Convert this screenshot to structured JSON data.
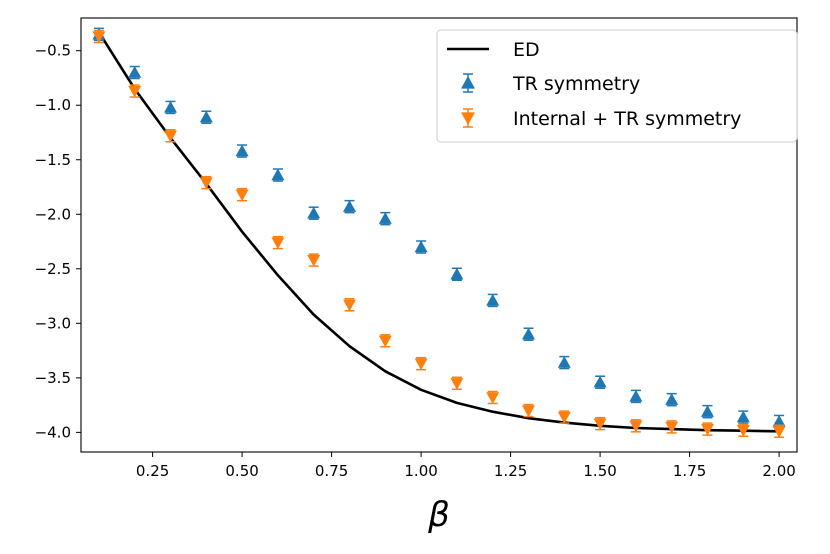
{
  "chart_data": {
    "type": "line+scatter",
    "title": "",
    "xlabel": "β",
    "ylabel": "",
    "xlim": [
      0.05,
      2.05
    ],
    "ylim": [
      -4.18,
      -0.2
    ],
    "xticks": [
      0.25,
      0.5,
      0.75,
      1.0,
      1.25,
      1.5,
      1.75,
      2.0
    ],
    "xtick_labels": [
      "0.25",
      "0.50",
      "0.75",
      "1.00",
      "1.25",
      "1.50",
      "1.75",
      "2.00"
    ],
    "yticks": [
      -0.5,
      -1.0,
      -1.5,
      -2.0,
      -2.5,
      -3.0,
      -3.5,
      -4.0
    ],
    "ytick_labels": [
      "−0.5",
      "−1.0",
      "−1.5",
      "−2.0",
      "−2.5",
      "−3.0",
      "−3.5",
      "−4.0"
    ],
    "legend_position": "top-right",
    "series": [
      {
        "name": "ED",
        "kind": "line",
        "color": "#000000",
        "x": [
          0.1,
          0.2,
          0.3,
          0.4,
          0.5,
          0.6,
          0.7,
          0.8,
          0.9,
          1.0,
          1.1,
          1.2,
          1.3,
          1.4,
          1.5,
          1.6,
          1.7,
          1.8,
          1.9,
          2.0
        ],
        "y": [
          -0.33,
          -0.85,
          -1.3,
          -1.72,
          -2.16,
          -2.56,
          -2.92,
          -3.21,
          -3.44,
          -3.61,
          -3.73,
          -3.81,
          -3.87,
          -3.91,
          -3.94,
          -3.96,
          -3.97,
          -3.98,
          -3.985,
          -3.99
        ]
      },
      {
        "name": "TR symmetry",
        "kind": "scatter",
        "marker": "triangle-up",
        "color": "#1f77b4",
        "x": [
          0.1,
          0.2,
          0.3,
          0.4,
          0.5,
          0.6,
          0.7,
          0.8,
          0.9,
          1.0,
          1.1,
          1.2,
          1.3,
          1.4,
          1.5,
          1.6,
          1.7,
          1.8,
          1.9,
          2.0
        ],
        "y": [
          -0.35,
          -0.7,
          -1.02,
          -1.11,
          -1.42,
          -1.64,
          -1.99,
          -1.93,
          -2.04,
          -2.3,
          -2.55,
          -2.79,
          -3.1,
          -3.36,
          -3.54,
          -3.67,
          -3.7,
          -3.81,
          -3.86,
          -3.9
        ]
      },
      {
        "name": "Internal + TR symmetry",
        "kind": "scatter",
        "marker": "triangle-down",
        "color": "#ff7f0e",
        "x": [
          0.1,
          0.2,
          0.3,
          0.4,
          0.5,
          0.6,
          0.7,
          0.8,
          0.9,
          1.0,
          1.1,
          1.2,
          1.3,
          1.4,
          1.5,
          1.6,
          1.7,
          1.8,
          1.9,
          2.0
        ],
        "y": [
          -0.37,
          -0.87,
          -1.28,
          -1.71,
          -1.82,
          -2.26,
          -2.42,
          -2.83,
          -3.16,
          -3.37,
          -3.55,
          -3.68,
          -3.8,
          -3.86,
          -3.92,
          -3.94,
          -3.95,
          -3.97,
          -3.98,
          -3.99
        ]
      }
    ]
  }
}
